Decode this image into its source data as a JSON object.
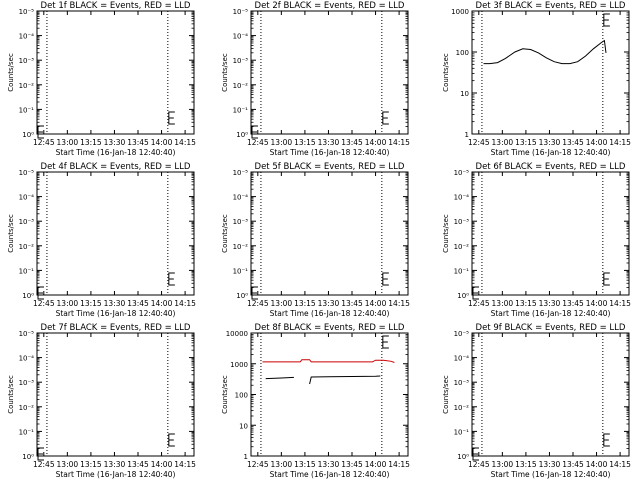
{
  "chart_data": [
    {
      "type": "line",
      "title": "Det 1f BLACK = Events, RED = LLD",
      "xlabel": "Start Time (16-Jan-18 12:40:40)",
      "ylabel": "Counts/sec",
      "x_ticks": [
        "12:45",
        "13:00",
        "13:15",
        "13:30",
        "13:45",
        "14:00",
        "14:15"
      ],
      "y_scale": "log",
      "y_ticks": [
        "10⁰",
        "10⁻¹",
        "10⁻²",
        "10⁻³",
        "10⁻⁴",
        "10⁻⁵"
      ],
      "series": []
    },
    {
      "type": "line",
      "title": "Det 2f BLACK = Events, RED = LLD",
      "xlabel": "Start Time (16-Jan-18 12:40:40)",
      "ylabel": "Counts/sec",
      "x_ticks": [
        "12:45",
        "13:00",
        "13:15",
        "13:30",
        "13:45",
        "14:00",
        "14:15"
      ],
      "y_scale": "log",
      "y_ticks": [
        "10⁰",
        "10⁻¹",
        "10⁻²",
        "10⁻³",
        "10⁻⁴",
        "10⁻⁵"
      ],
      "series": []
    },
    {
      "type": "line",
      "title": "Det 3f BLACK = Events, RED = LLD",
      "xlabel": "Start Time (16-Jan-18 12:40:40)",
      "ylabel": "Counts/sec",
      "x_ticks": [
        "12:45",
        "13:00",
        "13:15",
        "13:30",
        "13:45",
        "14:00",
        "14:15"
      ],
      "y_scale": "log",
      "y_ticks": [
        "1",
        "10",
        "100",
        "1000"
      ],
      "series": [
        {
          "color": "#000000",
          "x": [
            "12:48",
            "12:52",
            "12:57",
            "13:02",
            "13:08",
            "13:13",
            "13:18",
            "13:23",
            "13:28",
            "13:33",
            "13:38",
            "13:43",
            "13:48",
            "13:53",
            "13:58",
            "14:03",
            "14:05",
            "14:06"
          ],
          "y": [
            52,
            52,
            55,
            70,
            100,
            120,
            115,
            95,
            72,
            58,
            52,
            52,
            58,
            80,
            120,
            170,
            190,
            95
          ]
        }
      ]
    },
    {
      "type": "line",
      "title": "Det 4f BLACK = Events, RED = LLD",
      "xlabel": "Start Time (16-Jan-18 12:40:40)",
      "ylabel": "Counts/sec",
      "x_ticks": [
        "12:45",
        "13:00",
        "13:15",
        "13:30",
        "13:45",
        "14:00",
        "14:15"
      ],
      "y_scale": "log",
      "y_ticks": [
        "10⁰",
        "10⁻¹",
        "10⁻²",
        "10⁻³",
        "10⁻⁴",
        "10⁻⁵"
      ],
      "series": []
    },
    {
      "type": "line",
      "title": "Det 5f BLACK = Events, RED = LLD",
      "xlabel": "Start Time (16-Jan-18 12:40:40)",
      "ylabel": "Counts/sec",
      "x_ticks": [
        "12:45",
        "13:00",
        "13:15",
        "13:30",
        "13:45",
        "14:00",
        "14:15"
      ],
      "y_scale": "log",
      "y_ticks": [
        "10⁰",
        "10⁻¹",
        "10⁻²",
        "10⁻³",
        "10⁻⁴",
        "10⁻⁵"
      ],
      "series": []
    },
    {
      "type": "line",
      "title": "Det 6f BLACK = Events, RED = LLD",
      "xlabel": "Start Time (16-Jan-18 12:40:40)",
      "ylabel": "Counts/sec",
      "x_ticks": [
        "12:45",
        "13:00",
        "13:15",
        "13:30",
        "13:45",
        "14:00",
        "14:15"
      ],
      "y_scale": "log",
      "y_ticks": [
        "10⁰",
        "10⁻¹",
        "10⁻²",
        "10⁻³",
        "10⁻⁴",
        "10⁻⁵"
      ],
      "series": []
    },
    {
      "type": "line",
      "title": "Det 7f BLACK = Events, RED = LLD",
      "xlabel": "Start Time (16-Jan-18 12:40:40)",
      "ylabel": "Counts/sec",
      "x_ticks": [
        "12:45",
        "13:00",
        "13:15",
        "13:30",
        "13:45",
        "14:00",
        "14:15"
      ],
      "y_scale": "log",
      "y_ticks": [
        "10⁰",
        "10⁻¹",
        "10⁻²",
        "10⁻³",
        "10⁻⁴",
        "10⁻⁵"
      ],
      "series": []
    },
    {
      "type": "line",
      "title": "Det 8f BLACK = Events, RED = LLD",
      "xlabel": "Start Time (16-Jan-18 12:40:40)",
      "ylabel": "Counts/sec",
      "x_ticks": [
        "12:45",
        "13:00",
        "13:15",
        "13:30",
        "13:45",
        "14:00",
        "14:15"
      ],
      "y_scale": "log",
      "y_ticks": [
        "1",
        "10",
        "100",
        "1000",
        "10000"
      ],
      "series": [
        {
          "color": "#cc0000",
          "x": [
            "12:48",
            "12:55",
            "13:05",
            "13:12",
            "13:13",
            "13:18",
            "13:19",
            "13:30",
            "13:45",
            "13:58",
            "14:00",
            "14:05",
            "14:10",
            "14:12"
          ],
          "y": [
            1150,
            1150,
            1150,
            1150,
            1350,
            1350,
            1150,
            1150,
            1150,
            1150,
            1300,
            1300,
            1200,
            1100
          ]
        },
        {
          "color": "#000000",
          "x": [
            "12:50",
            "13:00",
            "13:08"
          ],
          "y": [
            330,
            345,
            360
          ]
        },
        {
          "color": "#000000",
          "x": [
            "13:18",
            "13:19",
            "13:30",
            "13:45",
            "14:00",
            "14:03"
          ],
          "y": [
            220,
            370,
            375,
            385,
            395,
            400
          ]
        }
      ]
    },
    {
      "type": "line",
      "title": "Det 9f BLACK = Events, RED = LLD",
      "xlabel": "Start Time (16-Jan-18 12:40:40)",
      "ylabel": "Counts/sec",
      "x_ticks": [
        "12:45",
        "13:00",
        "13:15",
        "13:30",
        "13:45",
        "14:00",
        "14:15"
      ],
      "y_scale": "log",
      "y_ticks": [
        "10⁰",
        "10⁻¹",
        "10⁻²",
        "10⁻³",
        "10⁻⁴",
        "10⁻⁵"
      ],
      "series": []
    }
  ]
}
